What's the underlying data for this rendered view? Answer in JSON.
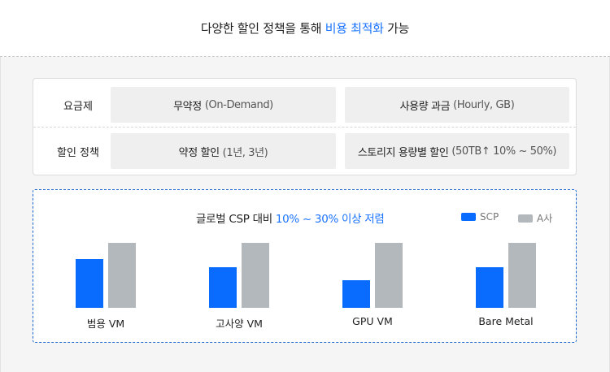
{
  "header": {
    "title_prefix": "다양한 할인 정책을 통해 ",
    "title_highlight": "비용 최적화",
    "title_suffix": " 가능"
  },
  "pricing": {
    "rows": [
      {
        "label": "요금제",
        "cells": [
          {
            "main": "무약정",
            "sub": "(On-Demand)"
          },
          {
            "main": "사용량 과금",
            "sub": "(Hourly, GB)"
          }
        ]
      },
      {
        "label": "할인 정책",
        "cells": [
          {
            "main": "약정 할인",
            "sub": "(1년, 3년)"
          },
          {
            "main": "스토리지 용량별 할인",
            "sub": "(50TB↑ 10% ~ 50%)"
          }
        ]
      }
    ]
  },
  "chart_data": {
    "type": "bar",
    "title_prefix": "글로벌 CSP 대비 ",
    "title_highlight": "10% ~ 30% 이상 저렴",
    "categories": [
      "범용 VM",
      "고사양 VM",
      "GPU VM",
      "Bare Metal"
    ],
    "series": [
      {
        "name": "SCP",
        "values": [
          0.75,
          0.62,
          0.43,
          0.62
        ],
        "color": "#0a6cff"
      },
      {
        "name": "A사",
        "values": [
          1.0,
          1.0,
          1.0,
          1.0
        ],
        "color": "#b3b8bd"
      }
    ],
    "ylim": [
      0,
      1
    ],
    "legend": "top-right"
  }
}
